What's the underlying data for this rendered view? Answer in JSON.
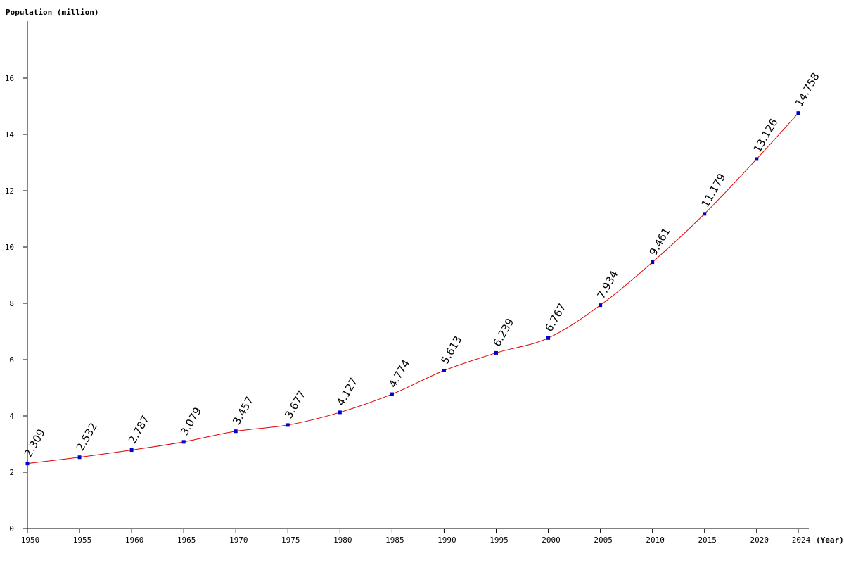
{
  "chart_data": {
    "type": "line",
    "ylabel": "Population (million)",
    "xlabel": "(Year)",
    "ylim": [
      0,
      18
    ],
    "y_ticks": [
      "0",
      "2",
      "4",
      "6",
      "8",
      "10",
      "12",
      "14",
      "16"
    ],
    "x_ticks": [
      "1950",
      "1955",
      "1960",
      "1965",
      "1970",
      "1975",
      "1980",
      "1985",
      "1990",
      "1995",
      "2000",
      "2005",
      "2010",
      "2015",
      "2020",
      "2024"
    ],
    "grid": false,
    "colors": {
      "line": "#dd0000",
      "marker": "#0000cc",
      "axis": "#000000"
    },
    "series": [
      {
        "x": [
          1950,
          1955,
          1960,
          1965,
          1970,
          1975,
          1980,
          1985,
          1990,
          1995,
          2000,
          2005,
          2010,
          2015,
          2020,
          2024
        ],
        "values": [
          2.309,
          2.532,
          2.787,
          3.079,
          3.457,
          3.677,
          4.127,
          4.774,
          5.613,
          6.239,
          6.767,
          7.934,
          9.461,
          11.179,
          13.126,
          14.758
        ],
        "labels": [
          "2.309",
          "2.532",
          "2.787",
          "3.079",
          "3.457",
          "3.677",
          "4.127",
          "4.774",
          "5.613",
          "6.239",
          "6.767",
          "7.934",
          "9.461",
          "11.179",
          "13.126",
          "14.758"
        ]
      }
    ]
  }
}
